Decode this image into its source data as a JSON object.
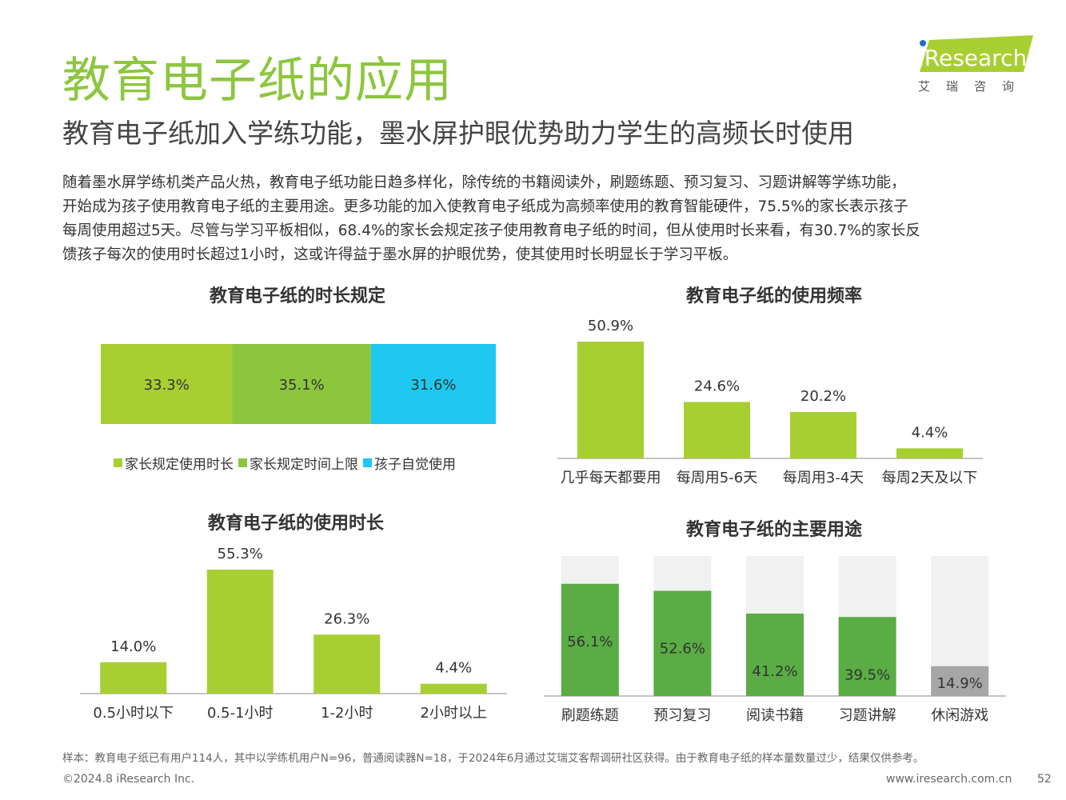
{
  "page": {
    "title": "教育电子纸的应用",
    "subtitle": "教育电子纸加入学练功能，墨水屏护眼优势助力学生的高频长时使用",
    "paragraph_lines": [
      "随着墨水屏学练机类产品火热，教育电子纸功能日趋多样化，除传统的书籍阅读外，刷题练题、预习复习、习题讲解等学练功能，",
      "开始成为孩子使用教育电子纸的主要用途。更多功能的加入使教育电子纸成为高频率使用的教育智能硬件，75.5%的家长表示孩子",
      "每周使用超过5天。尽管与学习平板相似，68.4%的家长会规定孩子使用教育电子纸的时间，但从使用时长来看，有30.7%的家长反",
      "馈孩子每次的使用时长超过1小时，这或许得益于墨水屏的护眼优势，使其使用时长明显长于学习平板。"
    ],
    "logo_text": "iResearch",
    "logo_cn": "艾瑞咨询",
    "footnote": "样本：教育电子纸已有用户114人，其中以学练机用户N=96，普通阅读器N=18，于2024年6月通过艾瑞艾客帮调研社区获得。由于教育电子纸的样本量数量过少，结果仅供参考。",
    "copyright": "©2024.8 iResearch Inc.",
    "website": "www.iresearch.com.cn",
    "page_number": "52"
  },
  "colors": {
    "title_green": "#8dc63f",
    "lime": "#a8cf32",
    "green": "#8cc63f",
    "cyan": "#1ec8f0",
    "dark_green": "#5aac44",
    "track_gray": "#f1f1f1",
    "gray_bar": "#a6a6a6"
  },
  "chart_data": [
    {
      "type": "bar",
      "stacked": true,
      "orientation": "horizontal",
      "title": "教育电子纸的时长规定",
      "series": [
        {
          "name": "家长规定使用时长",
          "values": [
            33.3
          ],
          "label": "33.3%"
        },
        {
          "name": "家长规定时间上限",
          "values": [
            35.1
          ],
          "label": "35.1%"
        },
        {
          "name": "孩子自觉使用",
          "values": [
            31.6
          ],
          "label": "31.6%"
        }
      ],
      "legend_position": "bottom"
    },
    {
      "type": "bar",
      "title": "教育电子纸的使用频率",
      "categories": [
        "几乎每天都要用",
        "每周用5-6天",
        "每周用3-4天",
        "每周2天及以下"
      ],
      "values": [
        50.9,
        24.6,
        20.2,
        4.4
      ],
      "labels": [
        "50.9%",
        "24.6%",
        "20.2%",
        "4.4%"
      ]
    },
    {
      "type": "bar",
      "title": "教育电子纸的使用时长",
      "categories": [
        "0.5小时以下",
        "0.5-1小时",
        "1-2小时",
        "2小时以上"
      ],
      "values": [
        14.0,
        55.3,
        26.3,
        4.4
      ],
      "labels": [
        "14.0%",
        "55.3%",
        "26.3%",
        "4.4%"
      ]
    },
    {
      "type": "bar",
      "title": "教育电子纸的主要用途",
      "categories": [
        "刷题练题",
        "预习复习",
        "阅读书籍",
        "习题讲解",
        "休闲游戏"
      ],
      "values": [
        56.1,
        52.6,
        41.2,
        39.5,
        14.9
      ],
      "labels": [
        "56.1%",
        "52.6%",
        "41.2%",
        "39.5%",
        "14.9%"
      ],
      "ylim": [
        0,
        70
      ]
    }
  ]
}
